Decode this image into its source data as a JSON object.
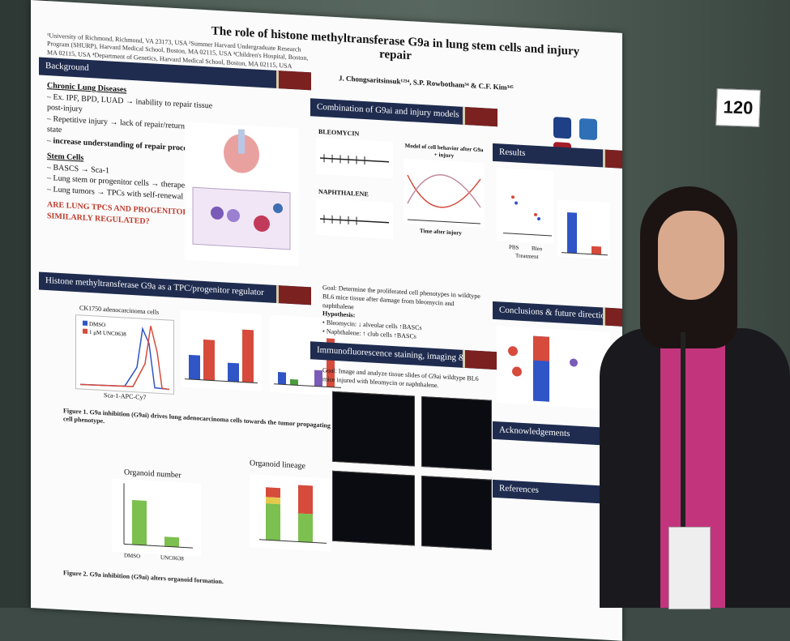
{
  "poster": {
    "title": "The role of histone methyltransferase G9a in lung stem cells and injury repair",
    "affiliations": "¹University of Richmond, Richmond, VA 23173, USA ²Summer Harvard Undergraduate Research Program (SHURP), Harvard Medical School, Boston, MA 02115, USA ³Children's Hospital, Boston, MA 02115, USA ⁴Department of Genetics, Harvard Medical School, Boston, MA 02115, USA",
    "authors": "J. Chongsaritsinsuk¹²³⁴, S.P. Rowbotham³⁴ & C.F. Kim³⁴⁵",
    "sections": {
      "background": "Background",
      "g9a_regulator": "Histone methyltransferase G9a as a TPC/progenitor regulator",
      "combination": "Combination of G9ai and injury models",
      "immuno": "Immunofluorescence staining, imaging & scoring",
      "results": "Results",
      "conclusions": "Conclusions & future directions",
      "acknowledgements": "Acknowledgements",
      "references": "References"
    },
    "background": {
      "h1": "Chronic Lung Diseases",
      "b1": "Ex. IPF, BPD, LUAD → inability to repair tissue post-injury",
      "b2": "Repetitive injury → lack of repair/return to normal state",
      "b3": "increase understanding of repair process",
      "h2": "Stem Cells",
      "b4": "BASCS → Sca-1",
      "b5": "Lung stem or progenitor cells → therapeutic agents",
      "b6": "Lung tumors → TPCs with self-renewal capacity",
      "question": "ARE LUNG TPCS AND PROGENITORS SIMILARLY REGULATED?"
    },
    "models": {
      "bleomycin": "BLEOMYCIN",
      "naphthalene": "NAPHTHALENE",
      "model_title": "Model of cell behavior after G9a + injury",
      "x_label": "Time after injury",
      "goal": "Goal: Determine the proliferated cell phenotypes in wildtype BL6 mice tissue after damage from bleomycin and naphthalene",
      "hypothesis_h": "Hypothesis:",
      "hyp1": "Bleomycin: ↓ alveolar cells ↑BASCs",
      "hyp2": "Naphthalene: ↑ club cells ↑BASCs"
    },
    "immuno_goal": "Goal: Image and analyze tissue slides of G9ai wildtype BL6 mice injured with bleomycin or naphthalene.",
    "fig1_title": "CK1750 adenocarcinoma cells",
    "fig1_legend1": "DMSO",
    "fig1_legend2": "1 μM UNC0638",
    "fig1_x": "Sca-1-APC-Cy7",
    "fig1_caption": "Figure 1. G9a inhibition (G9ai) drives lung adenocarcinoma cells towards the tumor propagating cell phenotype.",
    "fig2a_title": "Organoid number",
    "fig2b_title": "Organoid lineage",
    "fig2_x1": "DMSO",
    "fig2_x2": "UNC0638",
    "fig2_caption": "Figure 2. G9a inhibition (G9ai) alters organoid formation.",
    "results_x1": "PBS",
    "results_x2": "Bleo",
    "results_xlabel": "Treatment",
    "board_number": "120"
  }
}
